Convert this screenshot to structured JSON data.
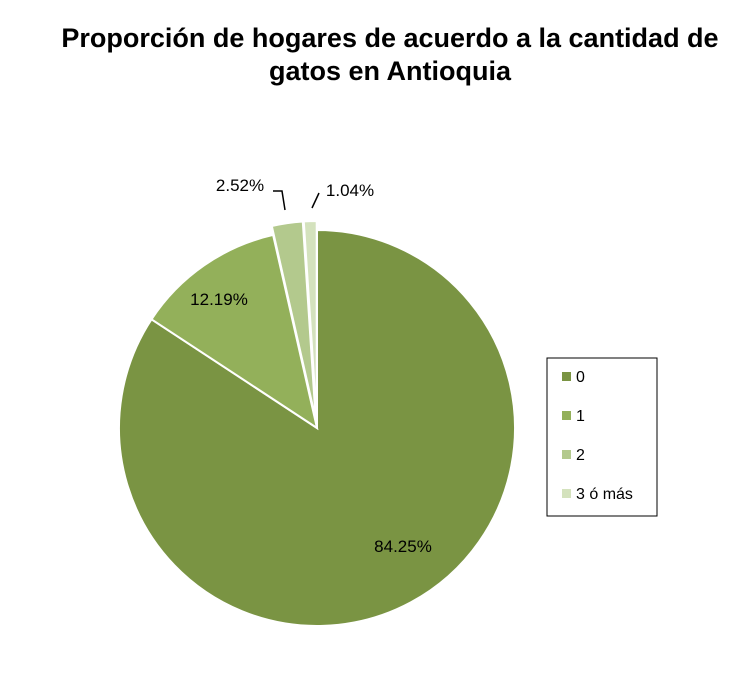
{
  "chart_data": {
    "type": "pie",
    "title": "Proporción de hogares de acuerdo a la cantidad de gatos en Antioquia",
    "slices": [
      {
        "label": "0",
        "value": 84.25,
        "display": "84.25%",
        "color": "#7a9443"
      },
      {
        "label": "1",
        "value": 12.19,
        "display": "12.19%",
        "color": "#93b05a"
      },
      {
        "label": "2",
        "value": 2.52,
        "display": "2.52%",
        "color": "#b3c98d"
      },
      {
        "label": "3 ó más",
        "value": 1.04,
        "display": "1.04%",
        "color": "#d4e2bd"
      }
    ],
    "legend": {
      "position": "right"
    }
  }
}
